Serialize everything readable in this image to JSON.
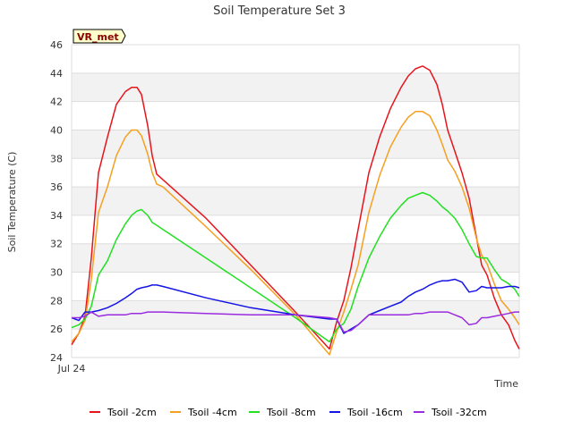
{
  "chart_data": {
    "type": "line",
    "title": "Soil Temperature Set 3",
    "xlabel": "Time",
    "ylabel": "Soil Temperature (C)",
    "x_tick_label": "Jul 24",
    "ylim": [
      24,
      46
    ],
    "yticks": [
      24,
      26,
      28,
      30,
      32,
      34,
      36,
      38,
      40,
      42,
      44,
      46
    ],
    "xlim": [
      0,
      1
    ],
    "badge": "VR_met",
    "x": [
      0.0,
      0.016,
      0.03,
      0.044,
      0.06,
      0.08,
      0.1,
      0.12,
      0.134,
      0.146,
      0.156,
      0.17,
      0.18,
      0.19,
      0.204,
      0.3,
      0.4,
      0.5,
      0.576,
      0.592,
      0.608,
      0.624,
      0.64,
      0.664,
      0.688,
      0.712,
      0.736,
      0.752,
      0.768,
      0.784,
      0.8,
      0.816,
      0.828,
      0.84,
      0.856,
      0.872,
      0.888,
      0.904,
      0.916,
      0.928,
      0.944,
      0.96,
      0.976,
      0.99,
      1.0
    ],
    "series": [
      {
        "name": "Tsoil -2cm",
        "color": "#e8141c",
        "values": [
          24.9,
          25.7,
          26.9,
          31.0,
          37.0,
          39.5,
          41.8,
          42.7,
          43.0,
          43.0,
          42.5,
          40.3,
          38.2,
          36.9,
          36.5,
          33.8,
          30.5,
          27.2,
          24.6,
          26.5,
          28.0,
          30.3,
          33.0,
          37.0,
          39.5,
          41.5,
          43.0,
          43.8,
          44.3,
          44.5,
          44.2,
          43.2,
          41.8,
          40.0,
          38.5,
          37.0,
          35.2,
          32.5,
          30.5,
          29.8,
          28.2,
          27.0,
          26.3,
          25.2,
          24.6
        ]
      },
      {
        "name": "Tsoil -4cm",
        "color": "#f5a020",
        "values": [
          25.1,
          25.7,
          26.6,
          29.5,
          34.2,
          36.0,
          38.2,
          39.5,
          40.0,
          40.0,
          39.6,
          38.3,
          37.0,
          36.2,
          36.0,
          33.2,
          30.2,
          27.0,
          24.2,
          25.8,
          27.2,
          28.8,
          30.5,
          34.2,
          36.8,
          38.8,
          40.2,
          40.9,
          41.3,
          41.3,
          41.0,
          40.0,
          39.0,
          37.9,
          37.1,
          36.0,
          34.5,
          32.4,
          31.2,
          30.6,
          29.2,
          28.0,
          27.4,
          26.8,
          26.3
        ]
      },
      {
        "name": "Tsoil -8cm",
        "color": "#22e022",
        "values": [
          26.1,
          26.3,
          26.7,
          27.6,
          29.8,
          30.8,
          32.3,
          33.4,
          34.0,
          34.3,
          34.4,
          34.0,
          33.5,
          33.3,
          33.0,
          31.0,
          28.9,
          26.8,
          25.1,
          26.0,
          26.4,
          27.4,
          29.0,
          31.0,
          32.5,
          33.8,
          34.7,
          35.2,
          35.4,
          35.6,
          35.4,
          35.0,
          34.6,
          34.3,
          33.8,
          33.0,
          32.0,
          31.1,
          31.0,
          31.0,
          30.2,
          29.5,
          29.2,
          28.8,
          28.3
        ]
      },
      {
        "name": "Tsoil -16cm",
        "color": "#1414e6",
        "values": [
          26.8,
          26.6,
          27.2,
          27.2,
          27.3,
          27.5,
          27.8,
          28.2,
          28.5,
          28.8,
          28.9,
          29.0,
          29.1,
          29.1,
          29.0,
          28.2,
          27.5,
          27.0,
          26.7,
          26.7,
          25.7,
          26.0,
          26.3,
          27.0,
          27.3,
          27.6,
          27.9,
          28.3,
          28.6,
          28.8,
          29.1,
          29.3,
          29.4,
          29.4,
          29.5,
          29.3,
          28.6,
          28.7,
          29.0,
          28.9,
          28.9,
          28.9,
          29.0,
          29.0,
          28.9
        ]
      },
      {
        "name": "Tsoil -32cm",
        "color": "#9a2ce0",
        "values": [
          26.8,
          26.8,
          26.9,
          27.2,
          26.9,
          27.0,
          27.0,
          27.0,
          27.1,
          27.1,
          27.1,
          27.2,
          27.2,
          27.2,
          27.2,
          27.1,
          27.0,
          27.0,
          26.8,
          26.7,
          25.8,
          25.9,
          26.3,
          27.0,
          27.0,
          27.0,
          27.0,
          27.0,
          27.1,
          27.1,
          27.2,
          27.2,
          27.2,
          27.2,
          27.0,
          26.8,
          26.3,
          26.4,
          26.8,
          26.8,
          26.9,
          27.0,
          27.1,
          27.2,
          27.2
        ]
      }
    ]
  }
}
